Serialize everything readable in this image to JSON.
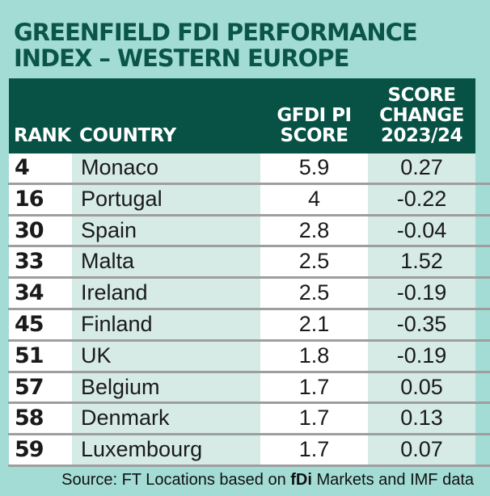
{
  "title": {
    "line1": "GREENFIELD FDI PERFORMANCE",
    "line2": "INDEX – WESTERN EUROPE"
  },
  "table": {
    "columns": {
      "rank": {
        "label": "RANK"
      },
      "country": {
        "label": "COUNTRY"
      },
      "score": {
        "label_line1": "GFDI PI",
        "label_line2": "SCORE"
      },
      "change": {
        "label_line1": "SCORE",
        "label_line2": "CHANGE",
        "label_line3": "2023/24"
      }
    },
    "rows": [
      {
        "rank": "4",
        "country": "Monaco",
        "score": "5.9",
        "change": "0.27"
      },
      {
        "rank": "16",
        "country": "Portugal",
        "score": "4",
        "change": "-0.22"
      },
      {
        "rank": "30",
        "country": "Spain",
        "score": "2.8",
        "change": "-0.04"
      },
      {
        "rank": "33",
        "country": "Malta",
        "score": "2.5",
        "change": "1.52"
      },
      {
        "rank": "34",
        "country": "Ireland",
        "score": "2.5",
        "change": "-0.19"
      },
      {
        "rank": "45",
        "country": "Finland",
        "score": "2.1",
        "change": "-0.35"
      },
      {
        "rank": "51",
        "country": "UK",
        "score": "1.8",
        "change": "-0.19"
      },
      {
        "rank": "57",
        "country": "Belgium",
        "score": "1.7",
        "change": "0.05"
      },
      {
        "rank": "58",
        "country": "Denmark",
        "score": "1.7",
        "change": "0.13"
      },
      {
        "rank": "59",
        "country": "Luxembourg",
        "score": "1.7",
        "change": "0.07"
      }
    ]
  },
  "source": {
    "prefix": "Source: FT Locations based on ",
    "brand": "fDi",
    "suffix": " Markets and IMF data"
  },
  "colors": {
    "page_background": "#a2dcd4",
    "header_green": "#075245",
    "title_green": "#0b5548",
    "cell_mint": "#d6ebe6",
    "cell_white": "#ffffff",
    "separator_gray": "#9e9e9e",
    "header_text": "#ffffff",
    "body_text": "#1a1a1a"
  },
  "chart_data": {
    "type": "table",
    "title": "GREENFIELD FDI PERFORMANCE INDEX – WESTERN EUROPE",
    "columns": [
      "RANK",
      "COUNTRY",
      "GFDI PI SCORE",
      "SCORE CHANGE 2023/24"
    ],
    "rows": [
      [
        4,
        "Monaco",
        5.9,
        0.27
      ],
      [
        16,
        "Portugal",
        4,
        -0.22
      ],
      [
        30,
        "Spain",
        2.8,
        -0.04
      ],
      [
        33,
        "Malta",
        2.5,
        1.52
      ],
      [
        34,
        "Ireland",
        2.5,
        -0.19
      ],
      [
        45,
        "Finland",
        2.1,
        -0.35
      ],
      [
        51,
        "UK",
        1.8,
        -0.19
      ],
      [
        57,
        "Belgium",
        1.7,
        0.05
      ],
      [
        58,
        "Denmark",
        1.7,
        0.13
      ],
      [
        59,
        "Luxembourg",
        1.7,
        0.07
      ]
    ],
    "source": "Source: FT Locations based on fDi Markets and IMF data"
  }
}
